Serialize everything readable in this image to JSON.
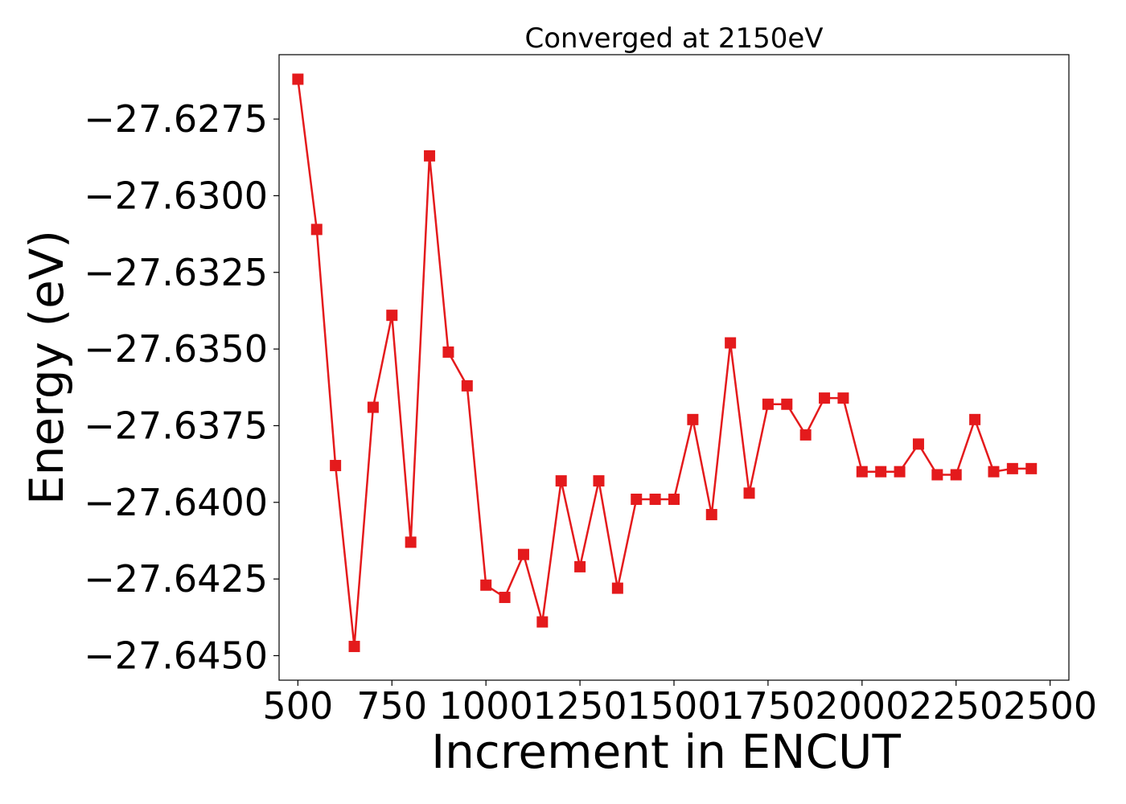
{
  "chart_data": {
    "type": "line",
    "title": "Converged at 2150eV",
    "xlabel": "Increment in ENCUT",
    "ylabel": "Energy (eV)",
    "xlim": [
      450,
      2550
    ],
    "ylim": [
      -27.6458,
      -27.6254
    ],
    "x_ticks": [
      500,
      750,
      1000,
      1250,
      1500,
      1750,
      2000,
      2250,
      2500
    ],
    "y_ticks": [
      -27.6275,
      -27.63,
      -27.6325,
      -27.635,
      -27.6375,
      -27.64,
      -27.6425,
      -27.645
    ],
    "x_tick_labels": [
      "500",
      "750",
      "1000",
      "1250",
      "1500",
      "1750",
      "2000",
      "2250",
      "2500"
    ],
    "y_tick_labels": [
      "−27.6275",
      "−27.6300",
      "−27.6325",
      "−27.6350",
      "−27.6375",
      "−27.6400",
      "−27.6425",
      "−27.6450"
    ],
    "grid": false,
    "legend": "none",
    "series": [
      {
        "color": "#e41a1c",
        "marker": "square",
        "x": [
          500,
          550,
          600,
          650,
          700,
          750,
          800,
          850,
          900,
          950,
          1000,
          1050,
          1100,
          1150,
          1200,
          1250,
          1300,
          1350,
          1400,
          1450,
          1500,
          1550,
          1600,
          1650,
          1700,
          1750,
          1800,
          1850,
          1900,
          1950,
          2000,
          2050,
          2100,
          2150,
          2200,
          2250,
          2300,
          2350,
          2400,
          2450
        ],
        "y": [
          -27.6262,
          -27.6311,
          -27.6388,
          -27.6447,
          -27.6369,
          -27.6339,
          -27.6413,
          -27.6287,
          -27.6351,
          -27.6362,
          -27.6427,
          -27.6431,
          -27.6417,
          -27.6439,
          -27.6393,
          -27.6421,
          -27.6393,
          -27.6428,
          -27.6399,
          -27.6399,
          -27.6399,
          -27.6373,
          -27.6404,
          -27.6348,
          -27.6397,
          -27.6368,
          -27.6368,
          -27.6378,
          -27.6366,
          -27.6366,
          -27.639,
          -27.639,
          -27.639,
          -27.6381,
          -27.6391,
          -27.6391,
          -27.6373,
          -27.639,
          -27.6389,
          -27.6389
        ]
      }
    ]
  }
}
